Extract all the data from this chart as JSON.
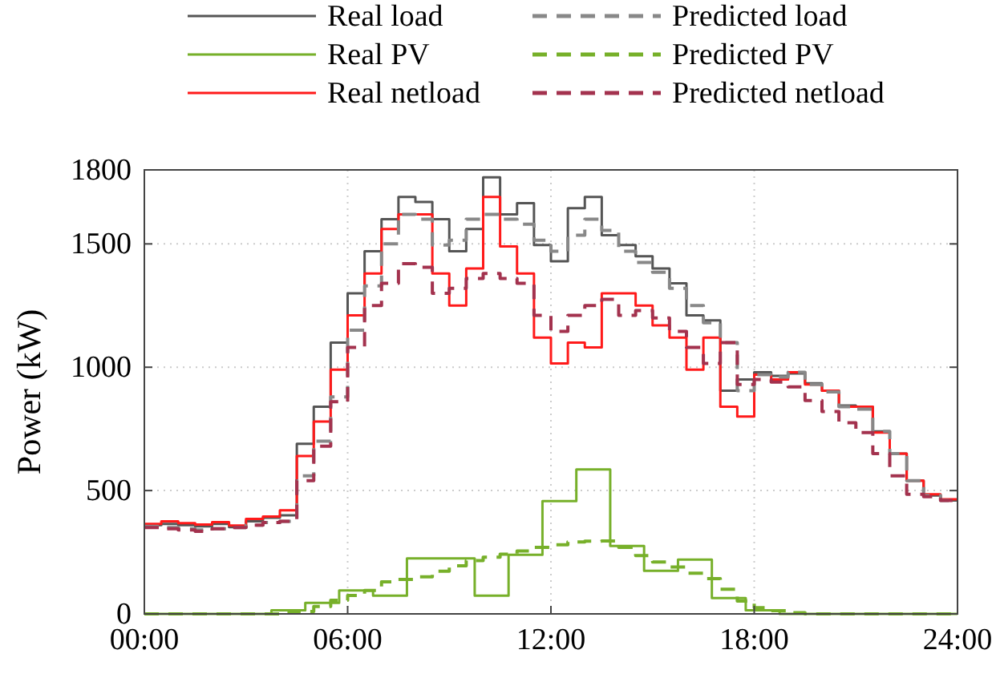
{
  "chart_data": {
    "type": "step",
    "ylabel": "Power (kW)",
    "x": [
      0,
      0.5,
      1,
      1.5,
      2,
      2.5,
      3,
      3.5,
      4,
      4.5,
      5,
      5.5,
      6,
      6.5,
      7,
      7.5,
      8,
      8.5,
      9,
      9.5,
      10,
      10.5,
      11,
      11.5,
      12,
      12.5,
      13,
      13.5,
      14,
      14.5,
      15,
      15.5,
      16,
      16.5,
      17,
      17.5,
      18,
      18.5,
      19,
      19.5,
      20,
      20.5,
      21,
      21.5,
      22,
      22.5,
      23,
      23.5,
      24
    ],
    "xlim": [
      0,
      24
    ],
    "xticks": [
      {
        "value": 0,
        "label": "00:00"
      },
      {
        "value": 6,
        "label": "06:00"
      },
      {
        "value": 12,
        "label": "12:00"
      },
      {
        "value": 18,
        "label": "18:00"
      },
      {
        "value": 24,
        "label": "24:00"
      }
    ],
    "ylim": [
      0,
      1800
    ],
    "yticks": [
      0,
      500,
      1000,
      1500,
      1800
    ],
    "grid": true,
    "legend": "top",
    "series": [
      {
        "name": "Real load",
        "color": "#555555",
        "line_style": "solid",
        "values": [
          360,
          365,
          360,
          355,
          365,
          352,
          375,
          390,
          400,
          690,
          840,
          1100,
          1300,
          1470,
          1600,
          1690,
          1670,
          1600,
          1470,
          1560,
          1770,
          1620,
          1665,
          1495,
          1430,
          1645,
          1690,
          1535,
          1495,
          1450,
          1400,
          1340,
          1210,
          1190,
          905,
          950,
          980,
          965,
          975,
          935,
          905,
          845,
          840,
          740,
          650,
          540,
          480,
          460,
          460
        ]
      },
      {
        "name": "Real PV",
        "color": "#77b02a",
        "line_style": "solid",
        "x": [
          0,
          0.75,
          1.75,
          2.75,
          3.75,
          4.75,
          5.75,
          6.75,
          7.75,
          8.75,
          9.75,
          10.75,
          11.75,
          12.75,
          13.75,
          14.75,
          15.75,
          16.75,
          17.75,
          18.75,
          19.75,
          20.75,
          21.75,
          22.75,
          23.75,
          24
        ],
        "values": [
          0,
          0,
          0,
          0,
          15,
          45,
          95,
          74,
          225,
          225,
          74,
          240,
          457,
          586,
          275,
          175,
          220,
          64,
          15,
          0,
          0,
          0,
          0,
          0,
          0,
          0
        ]
      },
      {
        "name": "Real netload",
        "color": "#ff1a1a",
        "line_style": "solid",
        "values": [
          365,
          375,
          368,
          362,
          372,
          358,
          385,
          395,
          420,
          640,
          780,
          990,
          1210,
          1380,
          1560,
          1620,
          1620,
          1380,
          1250,
          1400,
          1690,
          1490,
          1380,
          1120,
          1015,
          1100,
          1080,
          1300,
          1300,
          1250,
          1170,
          1120,
          990,
          1120,
          840,
          800,
          970,
          950,
          980,
          930,
          905,
          840,
          840,
          735,
          650,
          540,
          485,
          465,
          465
        ]
      },
      {
        "name": "Predicted load",
        "color": "#888888",
        "line_style": "dashed",
        "values": [
          355,
          350,
          345,
          340,
          345,
          350,
          360,
          370,
          375,
          560,
          700,
          880,
          1150,
          1330,
          1500,
          1620,
          1600,
          1495,
          1515,
          1600,
          1620,
          1600,
          1580,
          1515,
          1470,
          1535,
          1600,
          1555,
          1470,
          1425,
          1385,
          1320,
          1250,
          1180,
          1100,
          905,
          970,
          960,
          980,
          930,
          900,
          840,
          830,
          740,
          650,
          540,
          480,
          460,
          460
        ]
      },
      {
        "name": "Predicted PV",
        "color": "#77b02a",
        "line_style": "dashed",
        "values": [
          0,
          0,
          0,
          0,
          0,
          0,
          0,
          0,
          5,
          10,
          30,
          55,
          75,
          95,
          130,
          140,
          150,
          173,
          195,
          216,
          230,
          242,
          255,
          270,
          280,
          292,
          295,
          296,
          270,
          236,
          210,
          190,
          165,
          143,
          100,
          52,
          25,
          13,
          5,
          0,
          0,
          0,
          0,
          0,
          0,
          0,
          0,
          0,
          0
        ]
      },
      {
        "name": "Predicted netload",
        "color": "#a3324e",
        "line_style": "dashed",
        "values": [
          350,
          345,
          340,
          335,
          345,
          350,
          360,
          370,
          375,
          540,
          680,
          860,
          1080,
          1250,
          1340,
          1420,
          1405,
          1300,
          1320,
          1360,
          1380,
          1360,
          1340,
          1210,
          1145,
          1210,
          1250,
          1275,
          1210,
          1230,
          1200,
          1145,
          1080,
          1015,
          1100,
          930,
          950,
          940,
          920,
          865,
          820,
          775,
          735,
          650,
          560,
          485,
          475,
          460,
          460
        ]
      }
    ]
  }
}
